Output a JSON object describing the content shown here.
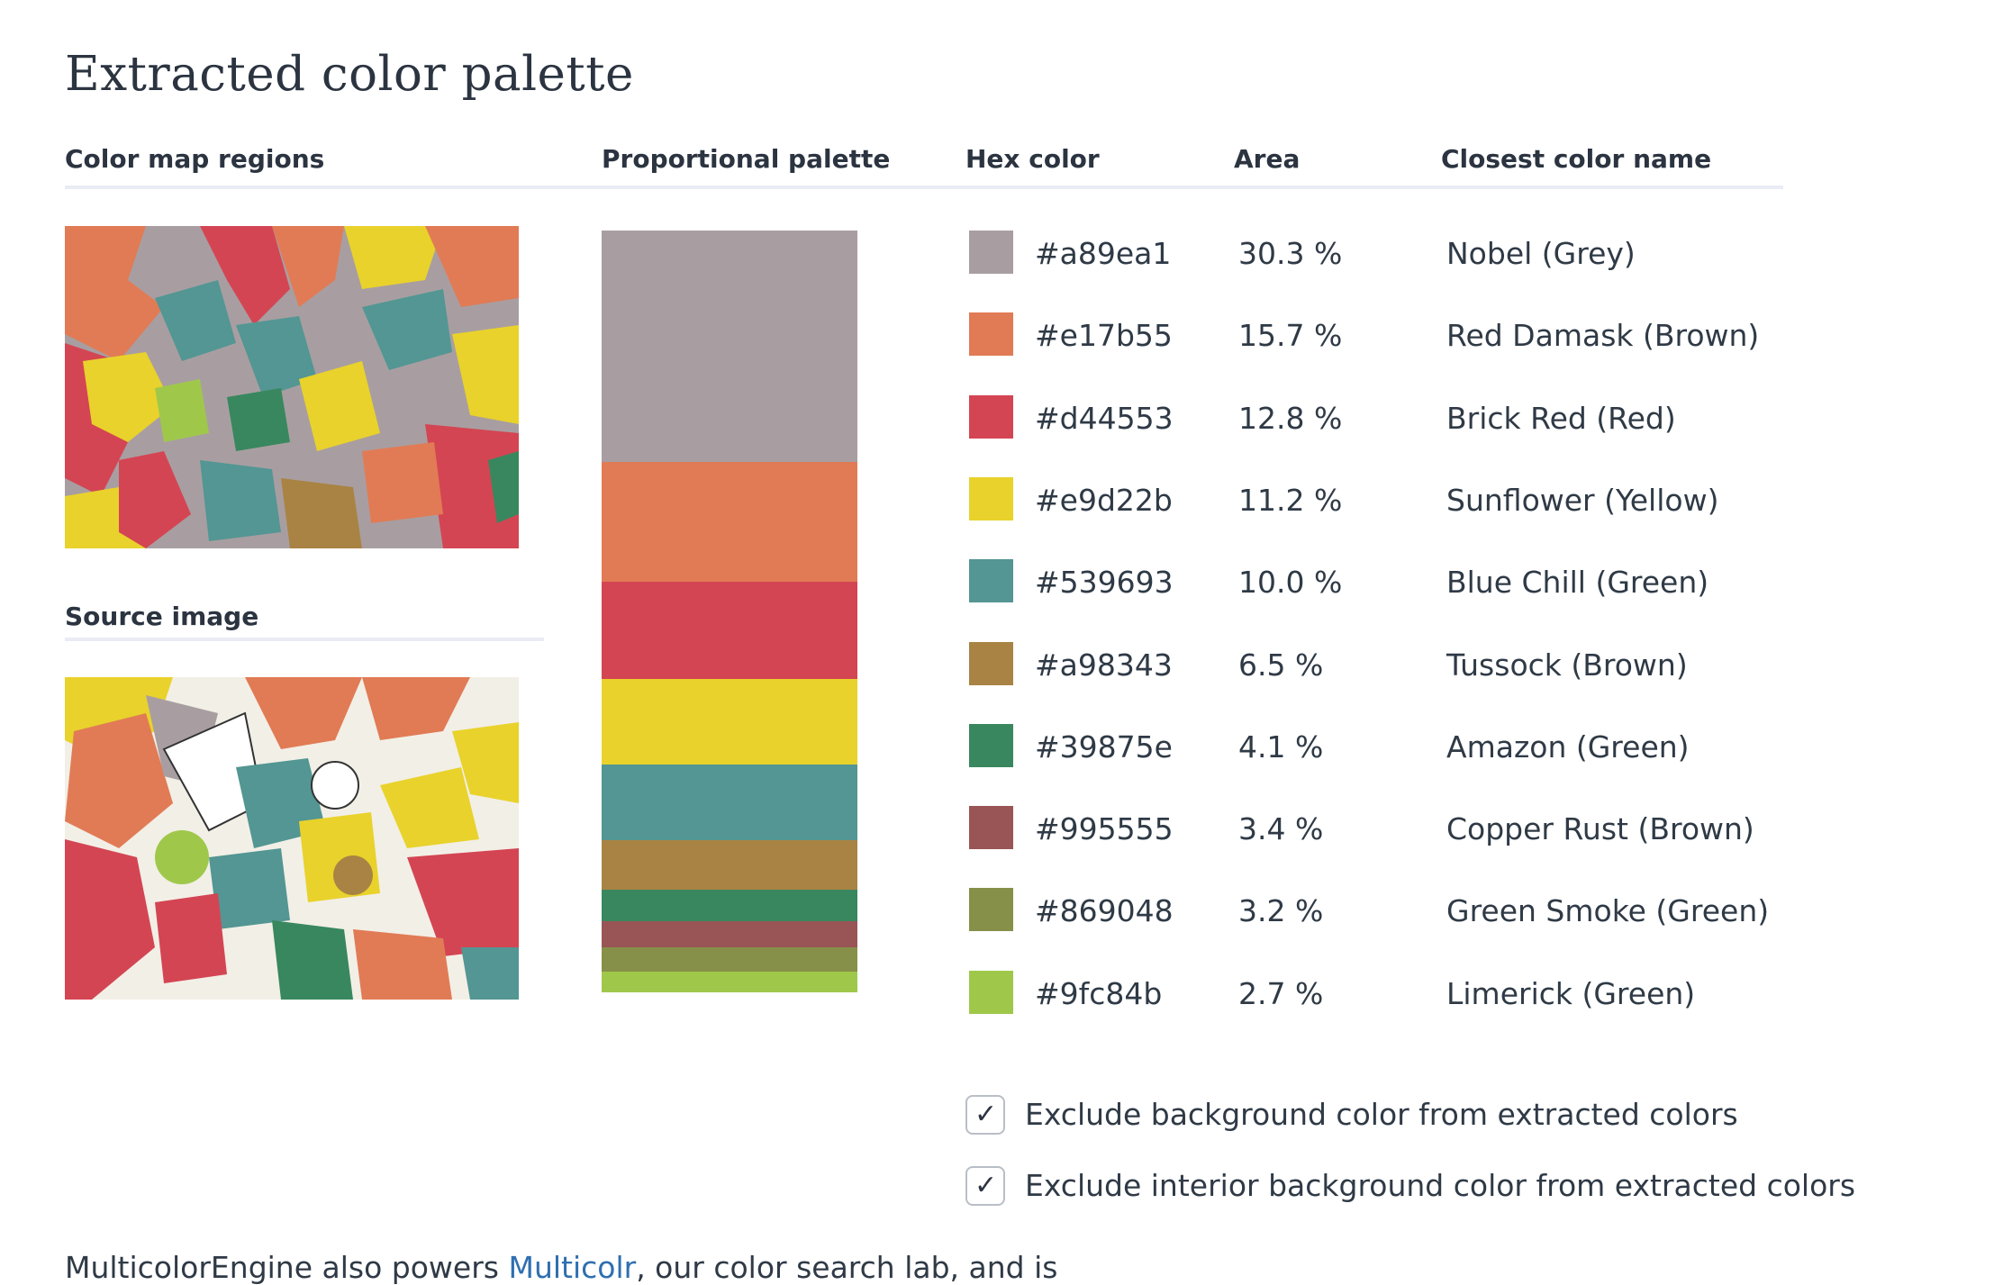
{
  "page": {
    "title": "Extracted color palette"
  },
  "columns": {
    "color_map_regions": "Color map regions",
    "proportional_palette": "Proportional palette",
    "hex_color": "Hex color",
    "area": "Area",
    "closest_color_name": "Closest color name"
  },
  "source_image": {
    "label": "Source image"
  },
  "colors": [
    {
      "hex": "#a89ea1",
      "area": "30.3 %",
      "name": "Nobel (Grey)",
      "fraction": 0.303
    },
    {
      "hex": "#e17b55",
      "area": "15.7 %",
      "name": "Red Damask (Brown)",
      "fraction": 0.157
    },
    {
      "hex": "#d44553",
      "area": "12.8 %",
      "name": "Brick Red (Red)",
      "fraction": 0.128
    },
    {
      "hex": "#e9d22b",
      "area": "11.2 %",
      "name": "Sunflower (Yellow)",
      "fraction": 0.112
    },
    {
      "hex": "#539693",
      "area": "10.0 %",
      "name": "Blue Chill (Green)",
      "fraction": 0.1
    },
    {
      "hex": "#a98343",
      "area": "6.5 %",
      "name": "Tussock (Brown)",
      "fraction": 0.065
    },
    {
      "hex": "#39875e",
      "area": "4.1 %",
      "name": "Amazon (Green)",
      "fraction": 0.041
    },
    {
      "hex": "#995555",
      "area": "3.4 %",
      "name": "Copper Rust (Brown)",
      "fraction": 0.034
    },
    {
      "hex": "#869048",
      "area": "3.2 %",
      "name": "Green Smoke (Green)",
      "fraction": 0.032
    },
    {
      "hex": "#9fc84b",
      "area": "2.7 %",
      "name": "Limerick (Green)",
      "fraction": 0.027
    }
  ],
  "options": [
    {
      "label": "Exclude background color from extracted colors",
      "checked": true
    },
    {
      "label": "Exclude interior background color from extracted colors",
      "checked": true
    }
  ],
  "footer": {
    "text_before": "MulticolorEngine also powers ",
    "link": "Multicolr",
    "text_after": ", our color search lab, and is"
  }
}
